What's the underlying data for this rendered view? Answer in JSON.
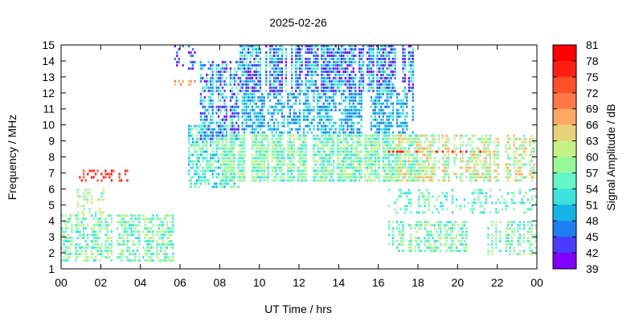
{
  "chart_data": {
    "type": "heatmap",
    "title": "2025-02-26",
    "xlabel": "UT Time / hrs",
    "ylabel": "Frequency / MHz",
    "xlim": [
      0,
      24
    ],
    "ylim": [
      1,
      15
    ],
    "x_tick_labels": [
      "00",
      "02",
      "04",
      "06",
      "08",
      "10",
      "12",
      "14",
      "16",
      "18",
      "20",
      "22",
      "00"
    ],
    "y_tick_labels": [
      "1",
      "2",
      "3",
      "4",
      "5",
      "6",
      "7",
      "8",
      "9",
      "10",
      "11",
      "12",
      "13",
      "14",
      "15"
    ],
    "colorbar": {
      "label": "Signal Amplitude / dB",
      "tick_labels": [
        "39",
        "42",
        "45",
        "48",
        "51",
        "54",
        "57",
        "60",
        "63",
        "66",
        "69",
        "72",
        "75",
        "78",
        "81"
      ],
      "colors": [
        "#8000ff",
        "#4a3cff",
        "#1e80f0",
        "#14b4e6",
        "#3ce0dc",
        "#64f5c8",
        "#96fa9b",
        "#c8f089",
        "#e6d278",
        "#ffaa64",
        "#ff7846",
        "#ff502a",
        "#ff1e14",
        "#ff0000"
      ]
    },
    "regions": [
      {
        "x": [
          0.0,
          5.8
        ],
        "y": [
          1.5,
          4.5
        ],
        "amp": "51-60",
        "density": "medium"
      },
      {
        "x": [
          0.8,
          2.2
        ],
        "y": [
          4.5,
          6.0
        ],
        "amp": "54-60",
        "density": "low"
      },
      {
        "x": [
          0.6,
          3.4
        ],
        "y": [
          6.6,
          7.2
        ],
        "amp": "72-75",
        "density": "low"
      },
      {
        "x": [
          5.6,
          6.8
        ],
        "y": [
          12.4,
          12.8
        ],
        "amp": "63-69",
        "density": "low"
      },
      {
        "x": [
          5.8,
          6.8
        ],
        "y": [
          13.6,
          15.0
        ],
        "amp": "39-45",
        "density": "low"
      },
      {
        "x": [
          6.4,
          9.0
        ],
        "y": [
          6.0,
          10.0
        ],
        "amp": "48-57",
        "density": "medium"
      },
      {
        "x": [
          7.0,
          9.0
        ],
        "y": [
          9.0,
          14.0
        ],
        "amp": "39-54",
        "density": "medium"
      },
      {
        "x": [
          9.0,
          17.8
        ],
        "y": [
          12.0,
          15.0
        ],
        "amp": "39-54",
        "density": "high"
      },
      {
        "x": [
          9.0,
          17.8
        ],
        "y": [
          9.5,
          12.0
        ],
        "amp": "45-51",
        "density": "medium"
      },
      {
        "x": [
          8.0,
          18.0
        ],
        "y": [
          6.5,
          9.5
        ],
        "amp": "51-60",
        "density": "high"
      },
      {
        "x": [
          16.5,
          21.5
        ],
        "y": [
          8.3,
          8.6
        ],
        "amp": "75-81",
        "density": "medium"
      },
      {
        "x": [
          17.0,
          24.0
        ],
        "y": [
          6.5,
          9.5
        ],
        "amp": "54-66",
        "density": "medium"
      },
      {
        "x": [
          16.5,
          20.5
        ],
        "y": [
          2.0,
          4.0
        ],
        "amp": "51-60",
        "density": "medium"
      },
      {
        "x": [
          21.5,
          24.0
        ],
        "y": [
          1.8,
          4.0
        ],
        "amp": "51-60",
        "density": "medium"
      },
      {
        "x": [
          16.5,
          24.0
        ],
        "y": [
          4.5,
          6.0
        ],
        "amp": "51-57",
        "density": "low"
      }
    ]
  }
}
